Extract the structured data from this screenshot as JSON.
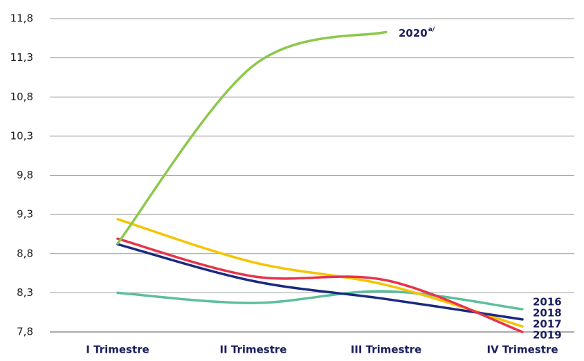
{
  "chart_data": {
    "type": "line",
    "categories": [
      "I Trimestre",
      "II Trimestre",
      "III Trimestre",
      "IV Trimestre"
    ],
    "series": [
      {
        "name": "2016",
        "color": "#5cbf9c",
        "values": [
          8.3,
          8.17,
          8.32,
          8.09
        ]
      },
      {
        "name": "2017",
        "color": "#f5c400",
        "values": [
          9.24,
          8.69,
          8.4,
          7.87
        ]
      },
      {
        "name": "2018",
        "color": "#1b2a80",
        "values": [
          8.92,
          8.45,
          8.22,
          7.96
        ]
      },
      {
        "name": "2019",
        "color": "#e8334a",
        "values": [
          8.99,
          8.51,
          8.46,
          7.8
        ]
      },
      {
        "name": "2020",
        "color": "#8cc84b",
        "values": [
          8.93,
          11.2,
          11.63,
          null
        ],
        "superscript": "a/"
      }
    ],
    "ylim": [
      7.8,
      11.8
    ],
    "yticks": [
      {
        "value": 7.8,
        "label": "7,8"
      },
      {
        "value": 8.3,
        "label": "8,3"
      },
      {
        "value": 8.8,
        "label": "8,8"
      },
      {
        "value": 9.3,
        "label": "9,3"
      },
      {
        "value": 9.8,
        "label": "9,8"
      },
      {
        "value": 10.3,
        "label": "10,3"
      },
      {
        "value": 10.8,
        "label": "10,8"
      },
      {
        "value": 11.3,
        "label": "11,3"
      },
      {
        "value": 11.8,
        "label": "11,8"
      }
    ],
    "grid": true
  }
}
